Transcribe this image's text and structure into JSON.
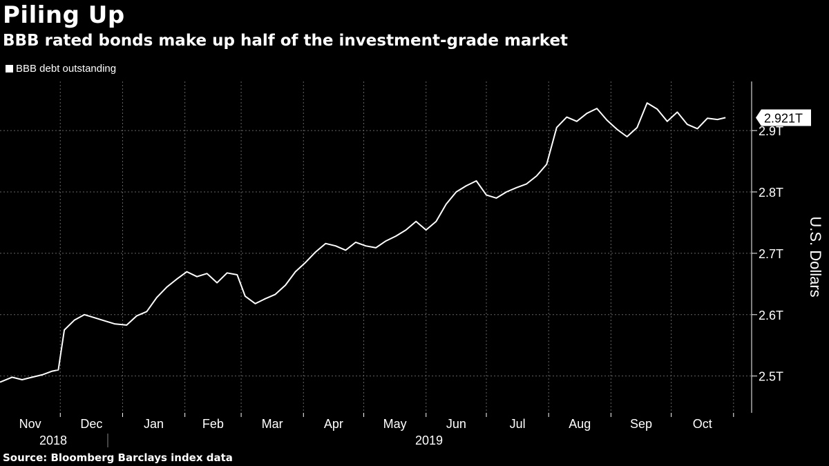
{
  "chart_data": {
    "type": "line",
    "title": "Piling Up",
    "subtitle": "BBB rated bonds make up half of the investment-grade market",
    "ylabel": "U.S. Dollars",
    "source": "Source: Bloomberg Barclays index data",
    "ylim": [
      2.44,
      2.98
    ],
    "yticks": [
      2.5,
      2.6,
      2.7,
      2.8,
      2.9
    ],
    "ytick_labels": [
      "2.5T",
      "2.6T",
      "2.7T",
      "2.8T",
      "2.9T"
    ],
    "month_labels": [
      "Nov",
      "Dec",
      "Jan",
      "Feb",
      "Mar",
      "Apr",
      "May",
      "Jun",
      "Jul",
      "Aug",
      "Sep",
      "Oct"
    ],
    "year_labels": [
      "2018",
      "2019"
    ],
    "last_value_label": "2.921T",
    "grid": true,
    "legend_position": "top-left",
    "colors": {
      "line": "#ffffff",
      "background": "#000000",
      "grid": "#666666"
    },
    "series": [
      {
        "name": "BBB debt outstanding",
        "x": [
          "2018-11-01",
          "2018-11-07",
          "2018-11-12",
          "2018-11-17",
          "2018-11-22",
          "2018-11-27",
          "2018-11-30",
          "2018-12-03",
          "2018-12-08",
          "2018-12-13",
          "2018-12-18",
          "2018-12-23",
          "2018-12-28",
          "2019-01-03",
          "2019-01-08",
          "2019-01-13",
          "2019-01-18",
          "2019-01-23",
          "2019-01-28",
          "2019-02-02",
          "2019-02-07",
          "2019-02-12",
          "2019-02-17",
          "2019-02-22",
          "2019-02-27",
          "2019-03-03",
          "2019-03-08",
          "2019-03-13",
          "2019-03-18",
          "2019-03-23",
          "2019-03-28",
          "2019-04-02",
          "2019-04-07",
          "2019-04-12",
          "2019-04-17",
          "2019-04-22",
          "2019-04-27",
          "2019-05-02",
          "2019-05-07",
          "2019-05-12",
          "2019-05-17",
          "2019-05-22",
          "2019-05-27",
          "2019-06-01",
          "2019-06-06",
          "2019-06-11",
          "2019-06-16",
          "2019-06-21",
          "2019-06-26",
          "2019-07-01",
          "2019-07-06",
          "2019-07-11",
          "2019-07-16",
          "2019-07-21",
          "2019-07-26",
          "2019-07-31",
          "2019-08-05",
          "2019-08-10",
          "2019-08-15",
          "2019-08-20",
          "2019-08-25",
          "2019-08-30",
          "2019-09-04",
          "2019-09-09",
          "2019-09-14",
          "2019-09-19",
          "2019-09-24",
          "2019-09-29",
          "2019-10-04",
          "2019-10-09",
          "2019-10-14",
          "2019-10-19",
          "2019-10-24",
          "2019-10-28"
        ],
        "values": [
          2.49,
          2.498,
          2.494,
          2.498,
          2.502,
          2.508,
          2.51,
          2.575,
          2.591,
          2.6,
          2.595,
          2.59,
          2.585,
          2.583,
          2.598,
          2.605,
          2.628,
          2.645,
          2.658,
          2.67,
          2.662,
          2.667,
          2.652,
          2.668,
          2.665,
          2.63,
          2.618,
          2.626,
          2.633,
          2.648,
          2.67,
          2.685,
          2.702,
          2.716,
          2.712,
          2.705,
          2.718,
          2.712,
          2.709,
          2.72,
          2.728,
          2.738,
          2.752,
          2.738,
          2.752,
          2.78,
          2.8,
          2.81,
          2.818,
          2.795,
          2.79,
          2.8,
          2.807,
          2.813,
          2.826,
          2.845,
          2.905,
          2.922,
          2.915,
          2.928,
          2.936,
          2.917,
          2.902,
          2.89,
          2.905,
          2.945,
          2.935,
          2.915,
          2.93,
          2.91,
          2.903,
          2.92,
          2.918,
          2.921
        ]
      }
    ]
  }
}
